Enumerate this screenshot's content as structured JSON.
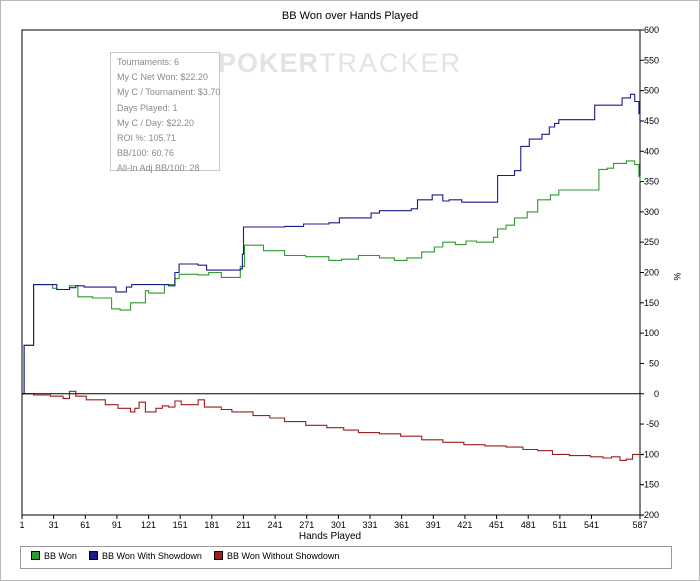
{
  "chart_data": {
    "type": "line",
    "title": "BB Won over Hands Played",
    "xlabel": "Hands Played",
    "ylabel": "%",
    "xlim": [
      1,
      587
    ],
    "ylim": [
      -200,
      600
    ],
    "x_ticks": [
      1,
      31,
      61,
      91,
      121,
      151,
      181,
      211,
      241,
      271,
      301,
      331,
      361,
      391,
      421,
      451,
      481,
      511,
      541,
      587
    ],
    "y_ticks": [
      600,
      550,
      500,
      450,
      400,
      350,
      300,
      250,
      200,
      150,
      100,
      50,
      0,
      -50,
      -100,
      -150,
      -200
    ],
    "legend_position": "bottom",
    "series": [
      {
        "name": "BB Won With Showdown",
        "color": "#1a1a8c",
        "points": [
          [
            1,
            0
          ],
          [
            3,
            80
          ],
          [
            9,
            80
          ],
          [
            12,
            180
          ],
          [
            30,
            180
          ],
          [
            34,
            172
          ],
          [
            46,
            175
          ],
          [
            52,
            178
          ],
          [
            60,
            176
          ],
          [
            88,
            176
          ],
          [
            90,
            168
          ],
          [
            96,
            168
          ],
          [
            100,
            176
          ],
          [
            105,
            180
          ],
          [
            121,
            180
          ],
          [
            140,
            178
          ],
          [
            146,
            200
          ],
          [
            150,
            214
          ],
          [
            168,
            212
          ],
          [
            176,
            204
          ],
          [
            208,
            206
          ],
          [
            210,
            230
          ],
          [
            211,
            275
          ],
          [
            250,
            276
          ],
          [
            268,
            280
          ],
          [
            292,
            282
          ],
          [
            302,
            290
          ],
          [
            320,
            290
          ],
          [
            332,
            298
          ],
          [
            340,
            302
          ],
          [
            370,
            305
          ],
          [
            376,
            320
          ],
          [
            390,
            328
          ],
          [
            400,
            318
          ],
          [
            406,
            320
          ],
          [
            418,
            316
          ],
          [
            448,
            316
          ],
          [
            452,
            360
          ],
          [
            468,
            368
          ],
          [
            474,
            408
          ],
          [
            482,
            420
          ],
          [
            494,
            428
          ],
          [
            501,
            440
          ],
          [
            506,
            446
          ],
          [
            510,
            452
          ],
          [
            542,
            452
          ],
          [
            544,
            476
          ],
          [
            560,
            476
          ],
          [
            570,
            488
          ],
          [
            578,
            494
          ],
          [
            582,
            482
          ],
          [
            586,
            462
          ],
          [
            587,
            452
          ]
        ]
      },
      {
        "name": "BB Won",
        "color": "#2e9a2e",
        "points": [
          [
            1,
            0
          ],
          [
            3,
            80
          ],
          [
            9,
            80
          ],
          [
            12,
            180
          ],
          [
            30,
            174
          ],
          [
            34,
            172
          ],
          [
            46,
            178
          ],
          [
            54,
            160
          ],
          [
            68,
            158
          ],
          [
            86,
            140
          ],
          [
            94,
            138
          ],
          [
            104,
            150
          ],
          [
            118,
            170
          ],
          [
            121,
            166
          ],
          [
            136,
            180
          ],
          [
            146,
            190
          ],
          [
            150,
            197
          ],
          [
            168,
            196
          ],
          [
            178,
            200
          ],
          [
            190,
            192
          ],
          [
            208,
            210
          ],
          [
            212,
            245
          ],
          [
            230,
            236
          ],
          [
            250,
            228
          ],
          [
            270,
            226
          ],
          [
            292,
            220
          ],
          [
            304,
            222
          ],
          [
            320,
            228
          ],
          [
            340,
            224
          ],
          [
            354,
            220
          ],
          [
            366,
            224
          ],
          [
            380,
            234
          ],
          [
            392,
            242
          ],
          [
            400,
            250
          ],
          [
            412,
            246
          ],
          [
            422,
            252
          ],
          [
            432,
            250
          ],
          [
            448,
            258
          ],
          [
            452,
            272
          ],
          [
            460,
            278
          ],
          [
            468,
            290
          ],
          [
            480,
            300
          ],
          [
            490,
            320
          ],
          [
            502,
            328
          ],
          [
            510,
            336
          ],
          [
            540,
            336
          ],
          [
            548,
            370
          ],
          [
            556,
            372
          ],
          [
            562,
            380
          ],
          [
            574,
            384
          ],
          [
            582,
            378
          ],
          [
            586,
            358
          ],
          [
            587,
            350
          ]
        ]
      },
      {
        "name": "BB Won Without Showdown",
        "color": "#9c1e1e",
        "points": [
          [
            1,
            0
          ],
          [
            12,
            -2
          ],
          [
            28,
            -4
          ],
          [
            40,
            -8
          ],
          [
            46,
            4
          ],
          [
            52,
            -4
          ],
          [
            62,
            -10
          ],
          [
            80,
            -18
          ],
          [
            92,
            -24
          ],
          [
            104,
            -30
          ],
          [
            108,
            -24
          ],
          [
            112,
            -14
          ],
          [
            118,
            -30
          ],
          [
            128,
            -24
          ],
          [
            134,
            -20
          ],
          [
            140,
            -22
          ],
          [
            146,
            -12
          ],
          [
            152,
            -18
          ],
          [
            166,
            -18
          ],
          [
            168,
            -10
          ],
          [
            174,
            -22
          ],
          [
            190,
            -26
          ],
          [
            200,
            -30
          ],
          [
            220,
            -36
          ],
          [
            236,
            -40
          ],
          [
            250,
            -46
          ],
          [
            270,
            -52
          ],
          [
            290,
            -56
          ],
          [
            306,
            -60
          ],
          [
            320,
            -64
          ],
          [
            340,
            -66
          ],
          [
            360,
            -70
          ],
          [
            380,
            -76
          ],
          [
            400,
            -80
          ],
          [
            420,
            -84
          ],
          [
            440,
            -86
          ],
          [
            460,
            -88
          ],
          [
            476,
            -92
          ],
          [
            490,
            -94
          ],
          [
            504,
            -100
          ],
          [
            520,
            -102
          ],
          [
            540,
            -104
          ],
          [
            552,
            -106
          ],
          [
            560,
            -104
          ],
          [
            568,
            -110
          ],
          [
            574,
            -108
          ],
          [
            580,
            -100
          ],
          [
            587,
            -98
          ]
        ]
      }
    ]
  },
  "stats": [
    "Tournaments: 6",
    "My C Net Won: $22.20",
    "My C / Tournament: $3.70",
    "Days Played: 1",
    "My C / Day: $22.20",
    "ROI %: 105.71",
    "BB/100: 60.76",
    "All-In Adj BB/100: 28"
  ],
  "watermark": {
    "left": "POKER",
    "right": "TRACKER"
  },
  "legend": {
    "items": [
      {
        "label": "BB Won",
        "color": "#2e9a2e"
      },
      {
        "label": "BB Won With Showdown",
        "color": "#1a1a8c"
      },
      {
        "label": "BB Won Without Showdown",
        "color": "#9c1e1e"
      }
    ]
  }
}
